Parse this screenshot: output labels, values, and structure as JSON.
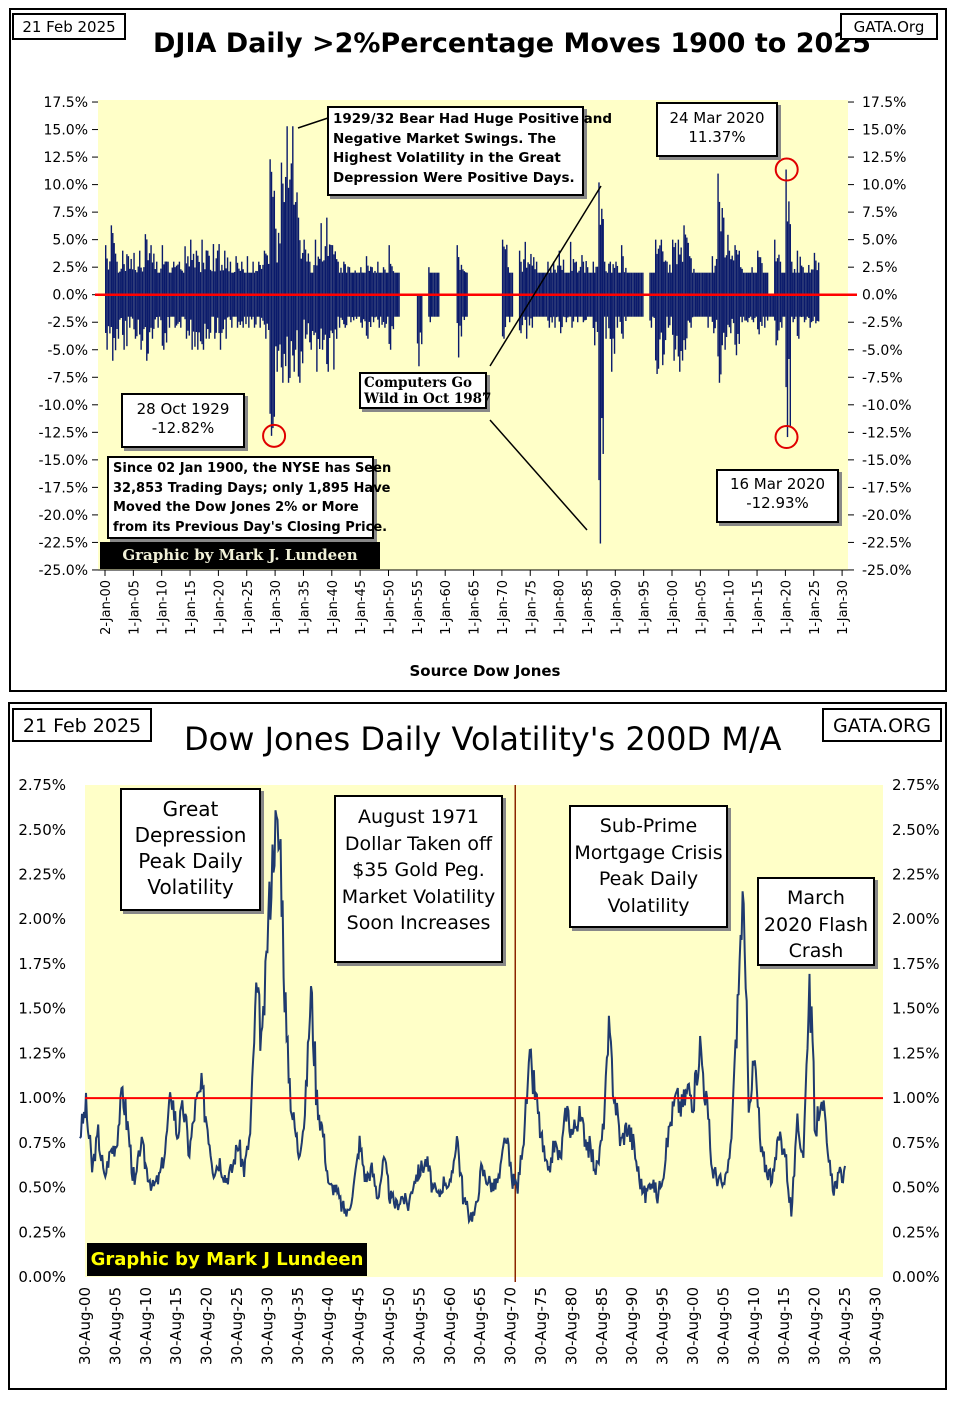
{
  "colors": {
    "bar": "#0a1a6b",
    "line": "#1f3a6e",
    "plot_bg": "#ffffc8",
    "zero_line": "#ff0000",
    "marker": "#e00000",
    "vline": "#8b2500",
    "label_yellow": "#ffff00"
  },
  "top": {
    "date": "21 Feb 2025",
    "title": "DJIA Daily >2%Percentage Moves 1900 to 2025",
    "source": "GATA.Org",
    "ann_bear": [
      "1929/32 Bear Had Huge Positive and",
      "Negative Market Swings.  The",
      "Highest Volatility in the Great",
      "Depression Were Positive Days."
    ],
    "ann_2020_up": [
      "24 Mar 2020",
      "11.37%"
    ],
    "ann_1929": [
      "28 Oct 1929",
      "-12.82%"
    ],
    "ann_1987": [
      "Computers Go",
      "Wild in Oct 1987"
    ],
    "ann_since": [
      "Since 02 Jan 1900, the NYSE has Seen",
      "32,853 Trading Days; only 1,895 Have",
      "Moved the Dow Jones 2% or More",
      "from its Previous Day's Closing Price."
    ],
    "ann_2020_down": [
      "16 Mar 2020",
      "-12.93%"
    ],
    "credit": "Graphic by Mark J. Lundeen",
    "footer": "Source Dow Jones"
  },
  "bottom": {
    "date": "21 Feb 2025",
    "title": "Dow Jones Daily Volatility's 200D M/A",
    "source": "GATA.ORG",
    "ann_depression": [
      "Great",
      "Depression",
      "Peak Daily",
      "Volatility"
    ],
    "ann_1971": [
      "August 1971",
      "Dollar Taken off",
      "$35 Gold Peg.",
      "Market Volatility",
      "Soon Increases"
    ],
    "ann_subprime": [
      "Sub-Prime",
      "Mortgage Crisis",
      "Peak Daily",
      "Volatility"
    ],
    "ann_2020": [
      "March",
      "2020 Flash",
      "Crash"
    ],
    "credit": "Graphic by Mark J Lundeen"
  },
  "chart_data": [
    {
      "type": "bar",
      "title": "DJIA Daily >2%Percentage Moves 1900 to 2025",
      "xlabel": "Source Dow Jones",
      "ylabel": "",
      "ylim": [
        -25,
        17.5
      ],
      "yticks": [
        "17.5%",
        "15.0%",
        "12.5%",
        "10.0%",
        "7.5%",
        "5.0%",
        "2.5%",
        "0.0%",
        "-2.5%",
        "-5.0%",
        "-7.5%",
        "-10.0%",
        "-12.5%",
        "-15.0%",
        "-17.5%",
        "-20.0%",
        "-22.5%",
        "-25.0%"
      ],
      "xticks": [
        "2-Jan-00",
        "1-Jan-05",
        "1-Jan-10",
        "1-Jan-15",
        "1-Jan-20",
        "1-Jan-25",
        "1-Jan-30",
        "1-Jan-35",
        "1-Jan-40",
        "1-Jan-45",
        "1-Jan-50",
        "1-Jan-55",
        "1-Jan-60",
        "1-Jan-65",
        "1-Jan-70",
        "1-Jan-75",
        "1-Jan-80",
        "1-Jan-85",
        "1-Jan-90",
        "1-Jan-95",
        "1-Jan-00",
        "1-Jan-05",
        "1-Jan-10",
        "1-Jan-15",
        "1-Jan-20",
        "1-Jan-25",
        "1-Jan-30"
      ],
      "reference_line": 0,
      "start_year": 1900,
      "yearly_max_up": [
        4.5,
        6.3,
        3,
        4,
        3.5,
        3.8,
        4,
        5.5,
        4.5,
        3,
        4.5,
        3,
        3,
        3,
        4.4,
        5,
        4,
        5,
        4,
        4.6,
        4.6,
        4,
        3,
        3.5,
        3,
        3.5,
        3,
        3,
        4,
        12.3,
        6,
        12,
        15.3,
        15.3,
        7,
        5,
        3,
        5,
        6.5,
        7,
        4.5,
        3,
        3,
        2.5,
        2.2,
        2.5,
        3.5,
        2.5,
        3,
        2.5,
        4.5,
        2,
        0,
        0,
        0,
        0,
        0,
        2.5,
        2,
        0,
        0,
        0,
        4.5,
        2.3,
        0,
        0,
        0,
        0,
        0,
        0,
        5,
        2.5,
        0,
        4,
        4.8,
        3.7,
        3,
        2,
        3,
        3,
        4,
        2,
        4.8,
        3,
        3.6,
        2.5,
        3,
        10.2,
        3,
        3,
        3,
        4.5,
        2,
        2,
        2,
        0,
        2,
        5,
        5,
        3,
        5,
        5,
        6.3,
        3.5,
        2,
        2,
        2,
        3.5,
        11,
        7,
        4,
        4.5,
        2.5,
        2,
        2.5,
        4,
        2,
        0,
        5,
        3,
        11.37,
        3,
        4,
        2.5,
        2.7,
        3.8
      ],
      "yearly_max_down": [
        -5,
        -6,
        -4,
        -5,
        -3,
        -4,
        -5,
        -6,
        -4,
        -3,
        -5,
        -3,
        -3,
        -3,
        -4,
        -5,
        -5,
        -5,
        -4,
        -4,
        -5,
        -4,
        -3,
        -3,
        -3,
        -3,
        -3,
        -3,
        -4,
        -12.82,
        -7,
        -8,
        -8,
        -7,
        -8,
        -4,
        -5,
        -7,
        -5,
        -7,
        -6.8,
        -3,
        -3,
        -2.5,
        -2.2,
        -3,
        -4,
        -2.5,
        -3,
        -3,
        -5,
        -2,
        0,
        0,
        0,
        -6.5,
        0,
        -2.5,
        -2,
        0,
        0,
        0,
        -5.7,
        -2.3,
        0,
        0,
        0,
        0,
        0,
        0,
        -4,
        -2.5,
        0,
        -3.5,
        -4,
        -3,
        -2,
        -2,
        -3,
        -3,
        -3.5,
        -2.5,
        -3,
        -2.5,
        -2.5,
        -2,
        -4.6,
        -22.6,
        -4,
        -7,
        -3,
        -4,
        -2,
        -2,
        -2,
        0,
        -3,
        -7.2,
        -6.4,
        -3,
        -6,
        -7,
        -5,
        -3,
        -2,
        -2,
        -3,
        -3.5,
        -8,
        -5,
        -3.5,
        -5.5,
        -2.5,
        -2.5,
        -2.5,
        -3.6,
        -3,
        -2,
        -4.6,
        -3,
        -12.93,
        -2.5,
        -4,
        -2.5,
        -3,
        -2.6
      ],
      "highlights": [
        {
          "label": "28 Oct 1929",
          "x": 1929.82,
          "y": -12.82
        },
        {
          "label": "24 Mar 2020",
          "x": 2020.23,
          "y": 11.37
        },
        {
          "label": "16 Mar 2020",
          "x": 2020.2,
          "y": -12.93
        }
      ]
    },
    {
      "type": "line",
      "title": "Dow Jones Daily Volatility's 200D M/A",
      "xlabel": "",
      "ylabel": "",
      "ylim": [
        0,
        2.75
      ],
      "yticks": [
        "2.75%",
        "2.50%",
        "2.25%",
        "2.00%",
        "1.75%",
        "1.50%",
        "1.25%",
        "1.00%",
        "0.75%",
        "0.50%",
        "0.25%",
        "0.00%"
      ],
      "xticks": [
        "30-Aug-00",
        "30-Aug-05",
        "30-Aug-10",
        "30-Aug-15",
        "30-Aug-20",
        "30-Aug-25",
        "30-Aug-30",
        "30-Aug-35",
        "30-Aug-40",
        "30-Aug-45",
        "30-Aug-50",
        "30-Aug-55",
        "30-Aug-60",
        "30-Aug-65",
        "30-Aug-70",
        "30-Aug-75",
        "30-Aug-80",
        "30-Aug-85",
        "30-Aug-90",
        "30-Aug-95",
        "30-Aug-00",
        "30-Aug-05",
        "30-Aug-10",
        "30-Aug-15",
        "30-Aug-20",
        "30-Aug-25",
        "30-Aug-30"
      ],
      "reference_line": 1.0,
      "vertical_marker_year": 1971.6,
      "start_year": 1900,
      "values": [
        0.8,
        0.95,
        0.6,
        0.8,
        0.55,
        0.7,
        0.75,
        1.05,
        0.8,
        0.5,
        0.75,
        0.6,
        0.5,
        0.55,
        0.7,
        1.05,
        0.8,
        0.95,
        0.7,
        0.95,
        1.05,
        0.85,
        0.6,
        0.65,
        0.55,
        0.6,
        0.75,
        0.6,
        0.8,
        1.6,
        1.3,
        2.0,
        2.5,
        2.4,
        1.3,
        0.9,
        0.7,
        0.9,
        1.6,
        1.0,
        0.8,
        0.5,
        0.5,
        0.4,
        0.35,
        0.5,
        0.75,
        0.55,
        0.6,
        0.45,
        0.65,
        0.45,
        0.4,
        0.45,
        0.4,
        0.55,
        0.6,
        0.65,
        0.5,
        0.45,
        0.55,
        0.5,
        0.8,
        0.45,
        0.35,
        0.35,
        0.6,
        0.55,
        0.5,
        0.55,
        0.8,
        0.55,
        0.5,
        0.8,
        1.2,
        1.0,
        0.75,
        0.55,
        0.75,
        0.65,
        0.95,
        0.8,
        0.9,
        0.8,
        0.7,
        0.6,
        0.8,
        1.35,
        1.0,
        0.75,
        0.85,
        0.75,
        0.55,
        0.45,
        0.55,
        0.45,
        0.6,
        0.85,
        1.0,
        0.95,
        1.05,
        1.0,
        1.3,
        1.0,
        0.6,
        0.55,
        0.5,
        0.7,
        1.4,
        2.1,
        1.0,
        1.2,
        0.7,
        0.6,
        0.55,
        0.8,
        0.7,
        0.35,
        0.85,
        0.7,
        1.65,
        0.8,
        1.05,
        0.65,
        0.5,
        0.57
      ]
    }
  ]
}
